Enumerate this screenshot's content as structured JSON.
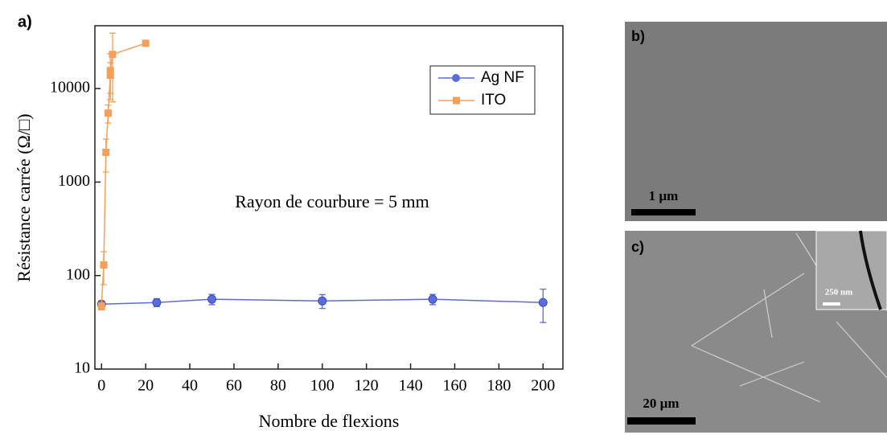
{
  "chart_data": {
    "type": "line",
    "panel_label": "a)",
    "annotation": "Rayon de courbure = 5 mm",
    "x_label": "Nombre de flexions",
    "y_label": "Résistance carrée (Ω/□)",
    "xlim": [
      -3,
      209
    ],
    "xticks": [
      0,
      20,
      40,
      60,
      80,
      100,
      120,
      140,
      160,
      180,
      200
    ],
    "ylim": [
      10,
      47000
    ],
    "yticks": [
      10,
      100,
      1000,
      10000
    ],
    "log_y": true,
    "legend": "upper right",
    "series": [
      {
        "name": "Ag NF",
        "color": "#5a6cdc",
        "marker": "circle",
        "x": [
          0,
          25,
          50,
          100,
          150,
          200
        ],
        "values": [
          49.5,
          51.5,
          55.8,
          53.5,
          55.8,
          51.5
        ],
        "errors": [
          4,
          5,
          7,
          9,
          7,
          20
        ]
      },
      {
        "name": "ITO",
        "color": "#f4a05a",
        "marker": "square",
        "x": [
          0,
          1,
          2,
          3,
          4,
          4,
          5,
          20
        ],
        "values": [
          47,
          130,
          2080,
          5470,
          13900,
          15600,
          23200,
          30500
        ],
        "errors": [
          4,
          50,
          800,
          1200,
          5000,
          8000,
          16000,
          null
        ]
      }
    ]
  },
  "panels": [
    {
      "label": "b)",
      "scale_bar": "1 µm"
    },
    {
      "label": "c)",
      "scale_bar": "20 µm",
      "inset_scale_bar": "250 nm"
    }
  ]
}
